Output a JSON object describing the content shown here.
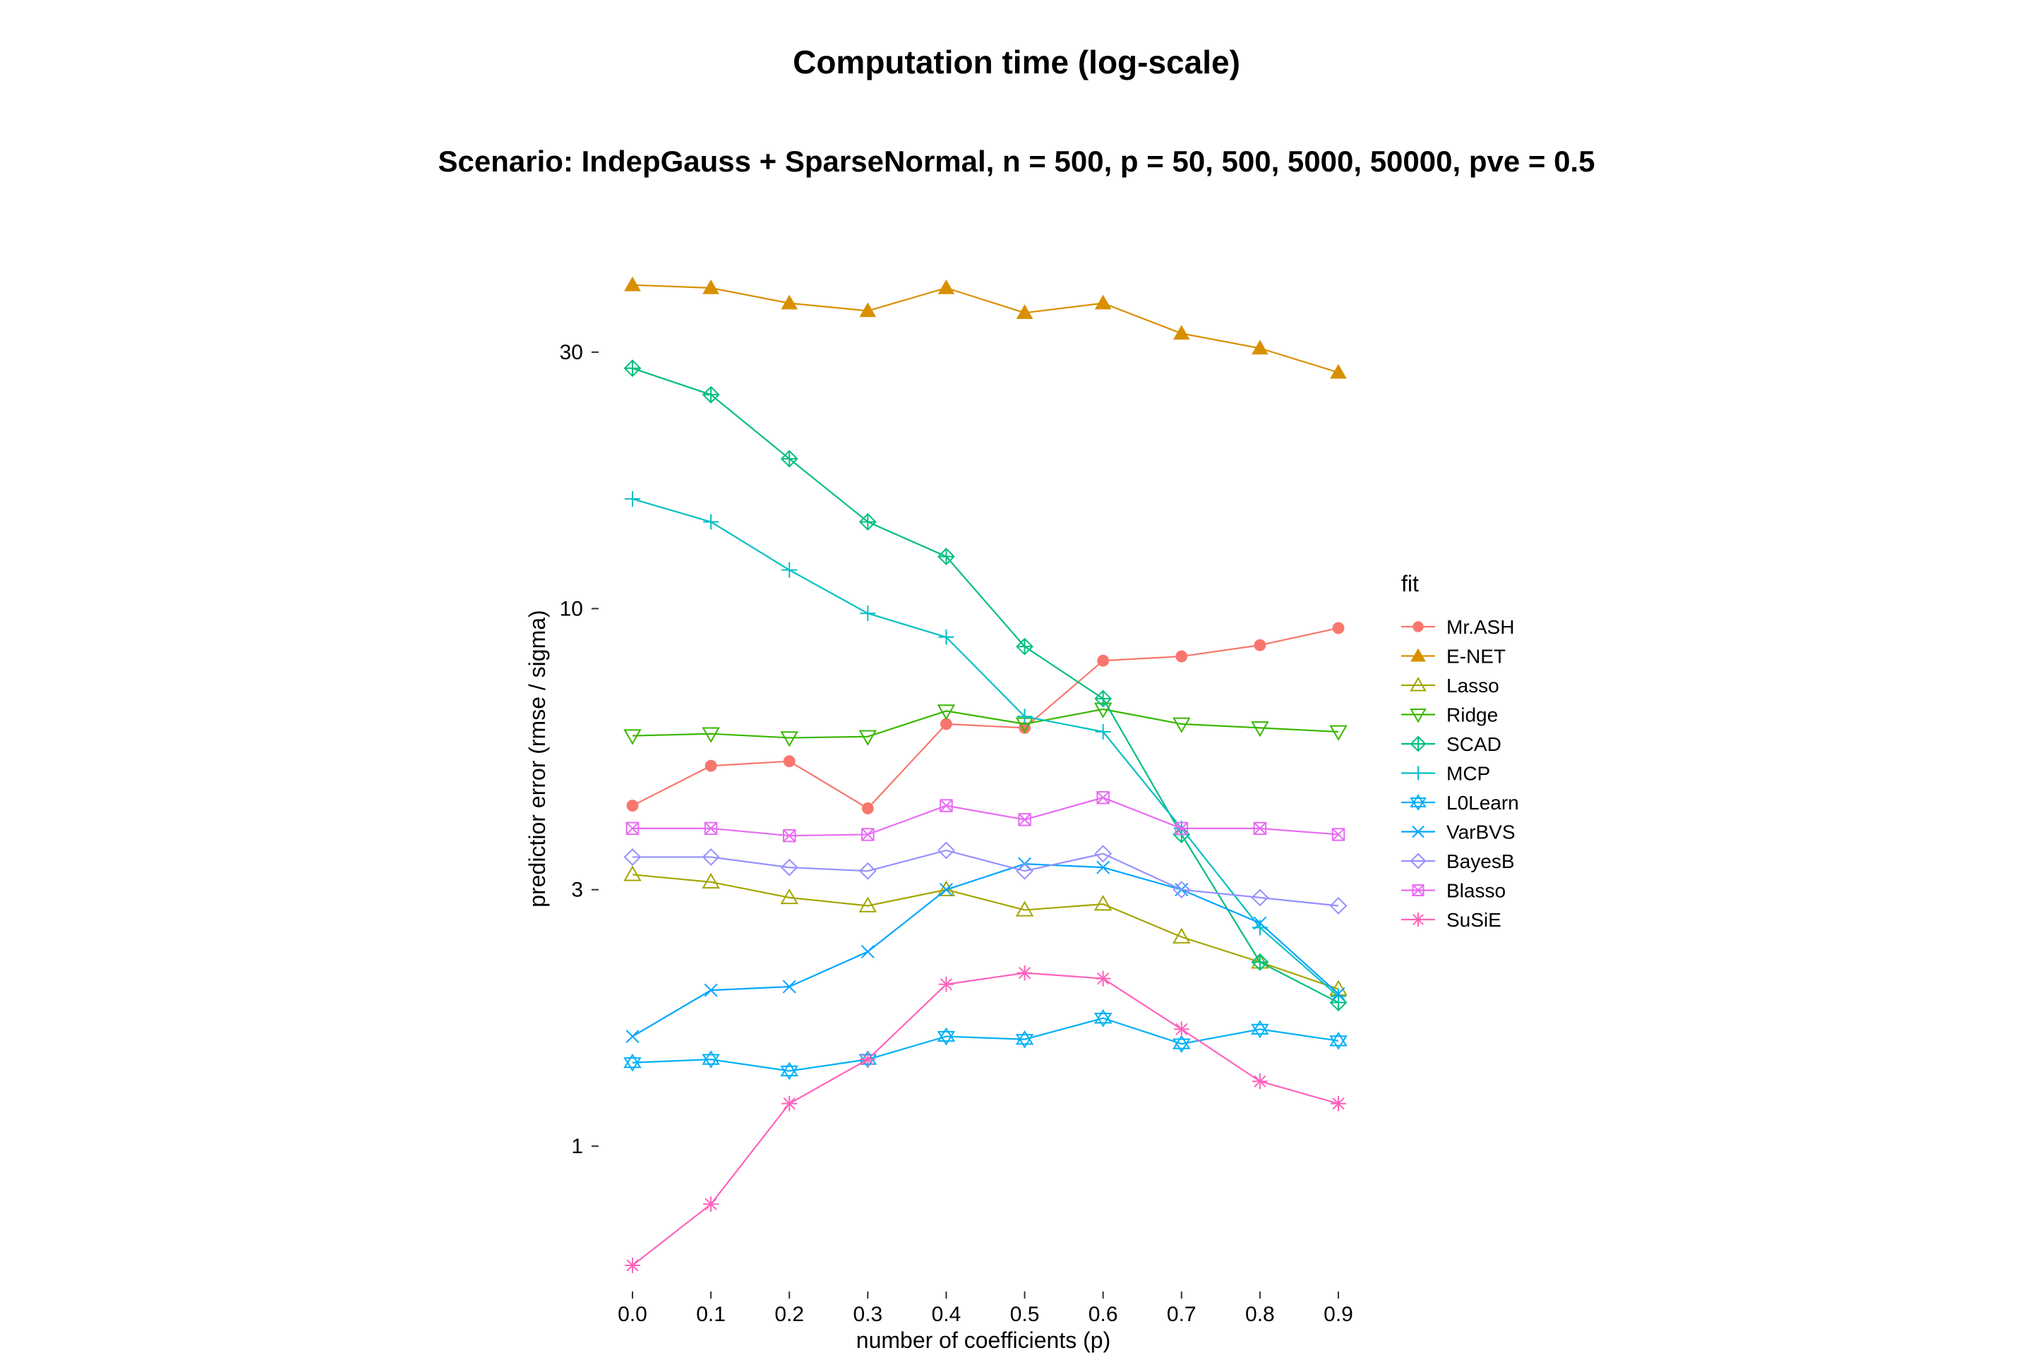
{
  "chart_data": {
    "type": "line",
    "title": "Computation time (log-scale)",
    "subtitle": "Scenario: IndepGauss + SparseNormal, n = 500, p = 50, 500, 5000, 50000, pve = 0.5",
    "xlabel": "number of coefficients (p)",
    "ylabel": "predictior error (rmse / sigma)",
    "yscale": "log",
    "ylim": [
      0.57,
      50
    ],
    "x": [
      0.0,
      0.1,
      0.2,
      0.3,
      0.4,
      0.5,
      0.6,
      0.7,
      0.8,
      0.9
    ],
    "x_tick_labels": [
      "0.0",
      "0.1",
      "0.2",
      "0.3",
      "0.4",
      "0.5",
      "0.6",
      "0.7",
      "0.8",
      "0.9"
    ],
    "y_ticks": [
      1,
      3,
      10,
      30
    ],
    "y_tick_labels": [
      "1",
      "3",
      "10",
      "30"
    ],
    "legend_title": "fit",
    "legend_position": "right",
    "series": [
      {
        "name": "Mr.ASH",
        "color": "#F8766D",
        "marker": "circle",
        "values": [
          4.3,
          5.1,
          5.2,
          4.25,
          6.1,
          6.0,
          8.0,
          8.15,
          8.55,
          9.2
        ]
      },
      {
        "name": "E-NET",
        "color": "#D89000",
        "marker": "triangle-filled",
        "values": [
          40.0,
          39.5,
          37.0,
          35.8,
          39.5,
          35.5,
          37.0,
          32.5,
          30.5,
          27.5
        ]
      },
      {
        "name": "Lasso",
        "color": "#A3A500",
        "marker": "triangle-open",
        "values": [
          3.2,
          3.1,
          2.9,
          2.8,
          3.0,
          2.75,
          2.82,
          2.45,
          2.2,
          1.96
        ]
      },
      {
        "name": "Ridge",
        "color": "#39B600",
        "marker": "triangle-down",
        "values": [
          5.8,
          5.85,
          5.75,
          5.78,
          6.45,
          6.1,
          6.5,
          6.1,
          6.0,
          5.9
        ]
      },
      {
        "name": "SCAD",
        "color": "#00BF7D",
        "marker": "diamond-plus",
        "values": [
          28.0,
          25.0,
          19.0,
          14.5,
          12.5,
          8.5,
          6.8,
          3.8,
          2.2,
          1.85
        ]
      },
      {
        "name": "MCP",
        "color": "#00BFC4",
        "marker": "plus",
        "values": [
          16.0,
          14.5,
          11.8,
          9.8,
          8.85,
          6.3,
          5.9,
          3.9,
          2.55,
          1.9
        ]
      },
      {
        "name": "L0Learn",
        "color": "#00B0F6",
        "marker": "star-of-david",
        "values": [
          1.43,
          1.45,
          1.38,
          1.45,
          1.6,
          1.58,
          1.73,
          1.55,
          1.65,
          1.57
        ]
      },
      {
        "name": "VarBVS",
        "color": "#00A5FF",
        "marker": "cross",
        "values": [
          1.6,
          1.95,
          1.98,
          2.3,
          3.0,
          3.35,
          3.3,
          3.0,
          2.6,
          1.92
        ]
      },
      {
        "name": "BayesB",
        "color": "#9590FF",
        "marker": "diamond",
        "values": [
          3.45,
          3.45,
          3.3,
          3.25,
          3.55,
          3.25,
          3.5,
          3.0,
          2.9,
          2.8
        ]
      },
      {
        "name": "Blasso",
        "color": "#E76BF3",
        "marker": "square-x",
        "values": [
          3.9,
          3.9,
          3.78,
          3.8,
          4.3,
          4.05,
          4.45,
          3.9,
          3.9,
          3.8
        ]
      },
      {
        "name": "SuSiE",
        "color": "#FF62BC",
        "marker": "asterisk",
        "values": [
          0.6,
          0.78,
          1.2,
          1.45,
          2.0,
          2.1,
          2.05,
          1.65,
          1.32,
          1.2
        ]
      }
    ]
  }
}
